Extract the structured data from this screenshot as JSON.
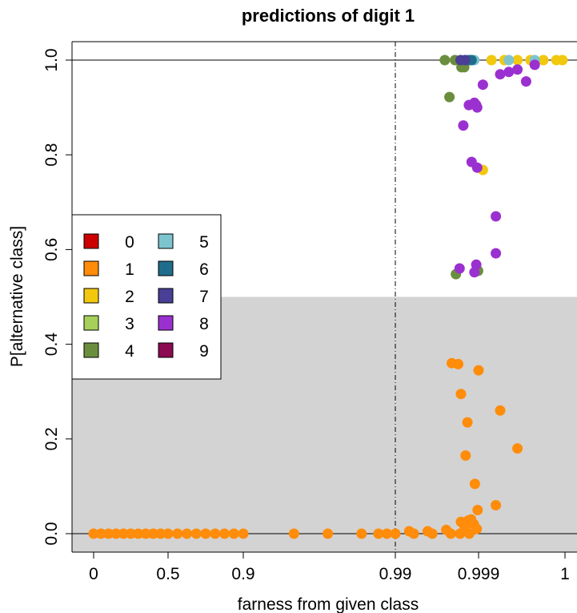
{
  "chart_data": {
    "type": "scatter",
    "title": "predictions of digit 1",
    "xlabel": "farness from given class",
    "ylabel": "P[alternative class]",
    "x_ticks": [
      {
        "value": 0,
        "label": "0"
      },
      {
        "value": 0.5,
        "label": "0.5"
      },
      {
        "value": 0.9,
        "label": "0.9"
      },
      {
        "value": 0.99,
        "label": "0.99"
      },
      {
        "value": 0.999,
        "label": "0.999"
      },
      {
        "value": 1,
        "label": "1"
      }
    ],
    "y_ticks": [
      {
        "value": 0.0,
        "label": "0.0"
      },
      {
        "value": 0.2,
        "label": "0.2"
      },
      {
        "value": 0.4,
        "label": "0.4"
      },
      {
        "value": 0.6,
        "label": "0.6"
      },
      {
        "value": 0.8,
        "label": "0.8"
      },
      {
        "value": 1.0,
        "label": "1.0"
      }
    ],
    "x_scale": "farness tick scale: 0, 0.5, 0.9, 0.99, 0.999, 1 equally spaced",
    "ylim": [
      -0.04,
      1.04
    ],
    "shaded_region": {
      "y_from": -0.04,
      "y_to": 0.5,
      "color": "#d3d3d3"
    },
    "reference_lines": {
      "horizontal": [
        0.0,
        1.0
      ],
      "vertical_dashed": 0.99
    },
    "legend_placement": "left",
    "classes": [
      {
        "label": "0",
        "color": "#cc0000"
      },
      {
        "label": "1",
        "color": "#ff8c0a"
      },
      {
        "label": "2",
        "color": "#f2c80f"
      },
      {
        "label": "3",
        "color": "#a6d05a"
      },
      {
        "label": "4",
        "color": "#6b8e3e"
      },
      {
        "label": "5",
        "color": "#7ec4cf"
      },
      {
        "label": "6",
        "color": "#1f6d8c"
      },
      {
        "label": "7",
        "color": "#4a3f96"
      },
      {
        "label": "8",
        "color": "#9b30d0"
      },
      {
        "label": "9",
        "color": "#8b0a50"
      }
    ],
    "series": [
      {
        "name": "1",
        "color": "#ff8c0a",
        "points": [
          [
            0.0,
            0.0
          ],
          [
            0.05,
            0.0
          ],
          [
            0.1,
            0.0
          ],
          [
            0.15,
            0.0
          ],
          [
            0.2,
            0.0
          ],
          [
            0.25,
            0.0
          ],
          [
            0.3,
            0.0
          ],
          [
            0.35,
            0.0
          ],
          [
            0.4,
            0.0
          ],
          [
            0.45,
            0.0
          ],
          [
            0.5,
            0.0
          ],
          [
            0.55,
            0.0
          ],
          [
            0.6,
            0.0
          ],
          [
            0.65,
            0.0
          ],
          [
            0.7,
            0.0
          ],
          [
            0.75,
            0.0
          ],
          [
            0.8,
            0.0
          ],
          [
            0.85,
            0.0
          ],
          [
            0.9,
            0.0
          ],
          [
            0.93,
            0.0
          ],
          [
            0.95,
            0.0
          ],
          [
            0.97,
            0.0
          ],
          [
            0.98,
            0.0
          ],
          [
            0.985,
            0.0
          ],
          [
            0.99,
            0.0
          ],
          [
            0.992,
            0.0
          ],
          [
            0.994,
            0.0
          ],
          [
            0.996,
            0.0
          ],
          [
            0.997,
            0.0
          ],
          [
            0.998,
            0.0
          ],
          [
            0.9915,
            0.005
          ],
          [
            0.9935,
            0.005
          ],
          [
            0.9955,
            0.008
          ],
          [
            0.9975,
            0.012
          ],
          [
            0.9985,
            0.02
          ],
          [
            0.9988,
            0.01
          ],
          [
            0.9961,
            0.36
          ],
          [
            0.9968,
            0.358
          ],
          [
            0.9971,
            0.295
          ],
          [
            0.999,
            0.345
          ],
          [
            0.99925,
            0.26
          ],
          [
            0.99945,
            0.18
          ],
          [
            0.9978,
            0.235
          ],
          [
            0.9976,
            0.165
          ],
          [
            0.9986,
            0.105
          ],
          [
            0.9992,
            0.06
          ],
          [
            0.9989,
            0.05
          ],
          [
            0.9982,
            0.03
          ],
          [
            0.9979,
            0.028
          ],
          [
            0.9971,
            0.025
          ]
        ]
      },
      {
        "name": "2",
        "color": "#f2c80f",
        "points": [
          [
            0.99905,
            0.768
          ],
          [
            0.99915,
            1.0
          ],
          [
            0.9993,
            1.0
          ],
          [
            0.99945,
            1.0
          ],
          [
            0.9996,
            1.0
          ],
          [
            0.99975,
            1.0
          ],
          [
            0.9999,
            1.0
          ],
          [
            0.99997,
            1.0
          ]
        ]
      },
      {
        "name": "4",
        "color": "#6b8e3e",
        "points": [
          [
            0.99585,
            0.922
          ],
          [
            0.99645,
            1.0
          ],
          [
            0.99715,
            0.985
          ],
          [
            0.99745,
            0.985
          ],
          [
            0.99895,
            0.555
          ],
          [
            0.99655,
            0.548
          ],
          [
            0.99535,
            1.0
          ]
        ]
      },
      {
        "name": "5",
        "color": "#7ec4cf",
        "points": [
          [
            0.99855,
            1.0
          ],
          [
            0.99935,
            1.0
          ],
          [
            0.99965,
            1.0
          ]
        ]
      },
      {
        "name": "6",
        "color": "#1f6d8c",
        "points": [
          [
            0.99795,
            1.0
          ],
          [
            0.99825,
            1.0
          ]
        ]
      },
      {
        "name": "7",
        "color": "#4a3f96",
        "points": [
          [
            0.99705,
            1.0
          ],
          [
            0.99755,
            1.0
          ]
        ]
      },
      {
        "name": "8",
        "color": "#9b30d0",
        "points": [
          [
            0.99875,
            0.905
          ],
          [
            0.99855,
            0.91
          ],
          [
            0.99885,
            0.9
          ],
          [
            0.99795,
            0.905
          ],
          [
            0.99825,
            0.785
          ],
          [
            0.99885,
            0.773
          ],
          [
            0.99735,
            0.862
          ],
          [
            0.9992,
            0.67
          ],
          [
            0.9992,
            0.592
          ],
          [
            0.99875,
            0.568
          ],
          [
            0.99855,
            0.552
          ],
          [
            0.99695,
            0.56
          ],
          [
            0.99905,
            0.948
          ],
          [
            0.99955,
            0.955
          ],
          [
            0.99935,
            0.975
          ],
          [
            0.99945,
            0.98
          ],
          [
            0.99965,
            0.99
          ],
          [
            0.99925,
            0.97
          ]
        ]
      }
    ]
  }
}
